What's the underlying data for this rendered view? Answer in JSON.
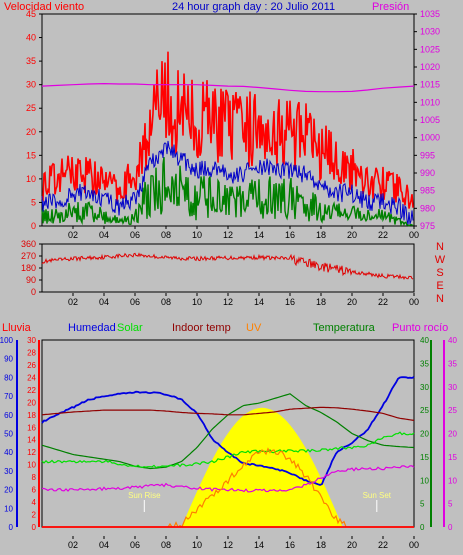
{
  "colors": {
    "background": "#c0c0c0",
    "gust": "#ff0000",
    "wind_avg": "#0000c8",
    "wind_min": "#008000",
    "pressure": "#e000e0",
    "direction": "#e00000",
    "lluvia": "#ff0000",
    "humedad": "#0000e0",
    "solar": "#00e000",
    "indoor": "#900000",
    "uv": "#ff8000",
    "temperatura": "#008000",
    "dewpoint": "#e000e0",
    "sun": "#ffff00"
  },
  "chart_data": [
    {
      "type": "line",
      "title": "24 hour graph day : 20 Julio 2011",
      "left_axis_label": "Velocidad viento",
      "right_axis_label": "Presión",
      "y_left_ticks": [
        "0",
        "5",
        "10",
        "15",
        "20",
        "25",
        "30",
        "35",
        "40",
        "45"
      ],
      "y_right_ticks": [
        "975",
        "980",
        "985",
        "990",
        "995",
        "1000",
        "1005",
        "1010",
        "1015",
        "1020",
        "1025",
        "1030",
        "1035"
      ],
      "ylim_left": [
        0,
        45
      ],
      "ylim_right": [
        975,
        1035
      ],
      "x_ticks": [
        "02",
        "04",
        "06",
        "08",
        "10",
        "12",
        "14",
        "16",
        "18",
        "20",
        "22",
        "00"
      ],
      "hours": [
        0,
        1,
        2,
        3,
        4,
        5,
        6,
        7,
        8,
        9,
        10,
        11,
        12,
        13,
        14,
        15,
        16,
        17,
        18,
        19,
        20,
        21,
        22,
        23,
        24
      ],
      "series": [
        {
          "key": "gust",
          "values": [
            9,
            10,
            12,
            11,
            9,
            8,
            11,
            22,
            27,
            24,
            22,
            23,
            21,
            20,
            22,
            21,
            20,
            19,
            16,
            14,
            12,
            10,
            9,
            8,
            5
          ]
        },
        {
          "key": "avg",
          "values": [
            5,
            5,
            7,
            7,
            6,
            4,
            6,
            13,
            17,
            14,
            12,
            12,
            11,
            11,
            13,
            12,
            12,
            11,
            9,
            7,
            7,
            5,
            5,
            4,
            1
          ]
        },
        {
          "key": "min",
          "values": [
            2,
            2,
            3,
            3,
            2,
            1,
            2,
            7,
            9,
            7,
            6,
            6,
            5,
            5,
            6,
            6,
            6,
            5,
            3,
            3,
            3,
            2,
            2,
            1,
            0
          ]
        },
        {
          "key": "pressure",
          "values": [
            1014.6,
            1014.8,
            1015.0,
            1015.2,
            1015.3,
            1015.2,
            1015.2,
            1015.0,
            1015.0,
            1015.0,
            1015.0,
            1014.8,
            1014.6,
            1014.5,
            1014.2,
            1013.8,
            1013.4,
            1013.1,
            1013.0,
            1013.0,
            1013.1,
            1013.5,
            1014.0,
            1014.3,
            1014.6
          ]
        }
      ]
    },
    {
      "type": "scatter",
      "direction_labels": [
        "N",
        "W",
        "S",
        "E",
        "N"
      ],
      "y_ticks": [
        "360",
        "270",
        "180",
        "90",
        "0"
      ],
      "ylim": [
        0,
        360
      ],
      "x_ticks": [
        "02",
        "04",
        "06",
        "08",
        "10",
        "12",
        "14",
        "16",
        "18",
        "20",
        "22",
        "00"
      ],
      "hours": [
        0,
        2,
        4,
        6,
        8,
        10,
        12,
        14,
        16,
        18,
        20,
        22,
        24
      ],
      "values": [
        228,
        250,
        262,
        280,
        258,
        250,
        256,
        260,
        250,
        190,
        150,
        120,
        108
      ]
    },
    {
      "type": "line",
      "legend": [
        {
          "key": "lluvia",
          "label": "Lluvia"
        },
        {
          "key": "humedad",
          "label": "Humedad"
        },
        {
          "key": "solar",
          "label": "Solar"
        },
        {
          "key": "indoor",
          "label": "Indoor temp"
        },
        {
          "key": "uv",
          "label": "UV"
        },
        {
          "key": "temperatura",
          "label": "Temperatura"
        },
        {
          "key": "dewpoint",
          "label": "Punto rocío"
        }
      ],
      "y_axis_humedad": [
        "0",
        "10",
        "20",
        "30",
        "40",
        "50",
        "60",
        "70",
        "80",
        "90",
        "100"
      ],
      "y_axis_lluvia": [
        "0",
        "2",
        "4",
        "6",
        "8",
        "10",
        "12",
        "14",
        "16",
        "18",
        "20",
        "22",
        "24",
        "26",
        "28",
        "30"
      ],
      "y_axis_temp_left": [
        "0",
        "5",
        "10",
        "15",
        "20",
        "25",
        "30",
        "35",
        "40"
      ],
      "y_axis_temp_right": [
        "0",
        "5",
        "10",
        "15",
        "20",
        "25",
        "30",
        "35",
        "40"
      ],
      "annotations": [
        "Sun Rise",
        "Sun Set"
      ],
      "x_ticks": [
        "02",
        "04",
        "06",
        "08",
        "10",
        "12",
        "14",
        "16",
        "18",
        "20",
        "22",
        "00"
      ],
      "hours": [
        0,
        1,
        2,
        3,
        4,
        5,
        6,
        7,
        8,
        9,
        10,
        11,
        12,
        13,
        14,
        15,
        16,
        17,
        18,
        19,
        20,
        21,
        22,
        23,
        24
      ],
      "sun_rise_hour": 6.6,
      "sun_set_hour": 21.6,
      "series": [
        {
          "key": "humedad",
          "axis": "humedad",
          "values": [
            56,
            60,
            64,
            68,
            70,
            71,
            72,
            72,
            71,
            68,
            61,
            47,
            40,
            34,
            33,
            31,
            29,
            25,
            22,
            40,
            45,
            52,
            65,
            80,
            80
          ]
        },
        {
          "key": "temperatura",
          "axis": "temp",
          "values": [
            17.5,
            16.5,
            15.5,
            15.0,
            14.5,
            14.0,
            13.0,
            12.5,
            12.8,
            14.0,
            17.0,
            21.0,
            24.0,
            26.0,
            26.5,
            27.5,
            28.5,
            26.0,
            24.5,
            22.5,
            20.0,
            18.5,
            17.5,
            17.2,
            17.0
          ]
        },
        {
          "key": "indoor",
          "axis": "temp",
          "values": [
            24.0,
            24.3,
            24.6,
            24.8,
            25.0,
            25.0,
            25.0,
            25.0,
            24.8,
            24.5,
            24.3,
            24.2,
            24.0,
            24.0,
            24.3,
            24.6,
            25.2,
            25.4,
            25.6,
            25.5,
            25.2,
            24.8,
            24.3,
            23.3,
            22.8
          ]
        },
        {
          "key": "solar",
          "axis": "temp",
          "values": [
            14.0,
            14.0,
            14.0,
            14.0,
            14.0,
            13.5,
            13.0,
            13.0,
            13.0,
            13.2,
            13.5,
            14.0,
            15.0,
            16.0,
            16.2,
            16.2,
            16.3,
            16.3,
            16.5,
            16.8,
            17.0,
            17.5,
            19.0,
            20.0,
            20.0
          ]
        },
        {
          "key": "dewpoint",
          "axis": "temp",
          "values": [
            8.0,
            8.0,
            8.0,
            8.0,
            8.2,
            8.2,
            8.5,
            8.8,
            9.0,
            8.5,
            8.3,
            8.0,
            8.0,
            7.8,
            7.8,
            7.8,
            8.0,
            9.0,
            10.5,
            12.0,
            12.3,
            12.5,
            12.5,
            12.8,
            12.8
          ]
        },
        {
          "key": "uv",
          "axis": "temp",
          "values": [
            0,
            0,
            0,
            0,
            0,
            0,
            0,
            0,
            0,
            0.5,
            3.5,
            7.0,
            10.0,
            13.0,
            16.0,
            16.5,
            14.5,
            11.0,
            6.0,
            1.5,
            0,
            0,
            0,
            0,
            0
          ]
        },
        {
          "key": "lluvia",
          "axis": "lluvia",
          "values": [
            0,
            0,
            0,
            0,
            0,
            0,
            0,
            0,
            0,
            0,
            0,
            0,
            0,
            0,
            0,
            0,
            0,
            0,
            0,
            0,
            0,
            0,
            0,
            0,
            0
          ]
        }
      ]
    }
  ]
}
